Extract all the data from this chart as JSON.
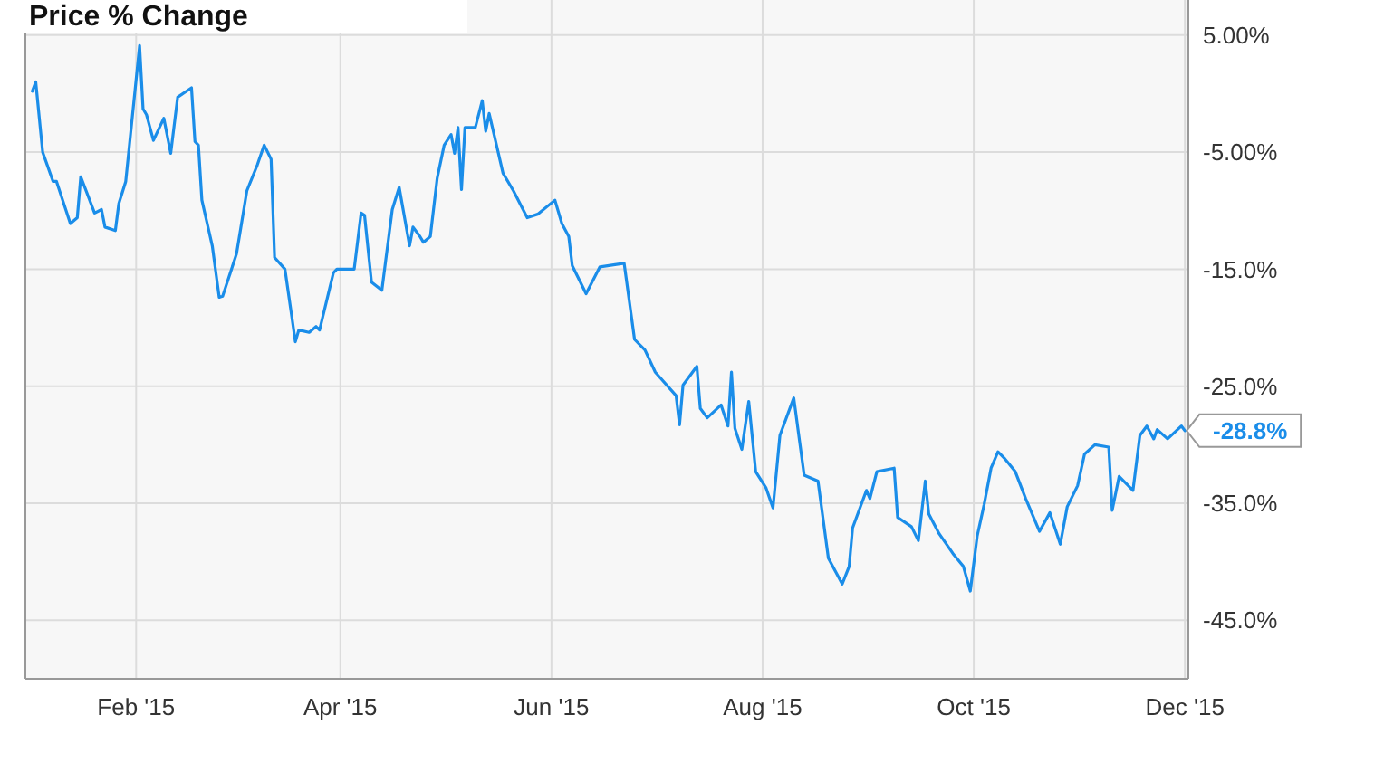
{
  "chart_data": {
    "type": "line",
    "title": "Price % Change",
    "x": [
      "2015-01-02",
      "2015-01-03",
      "2015-01-05",
      "2015-01-08",
      "2015-01-09",
      "2015-01-13",
      "2015-01-15",
      "2015-01-16",
      "2015-01-20",
      "2015-01-22",
      "2015-01-23",
      "2015-01-26",
      "2015-01-27",
      "2015-01-29",
      "2015-02-02",
      "2015-02-03",
      "2015-02-04",
      "2015-02-06",
      "2015-02-09",
      "2015-02-11",
      "2015-02-13",
      "2015-02-17",
      "2015-02-18",
      "2015-02-19",
      "2015-02-20",
      "2015-02-23",
      "2015-02-25",
      "2015-02-26",
      "2015-03-02",
      "2015-03-05",
      "2015-03-08",
      "2015-03-10",
      "2015-03-12",
      "2015-03-13",
      "2015-03-16",
      "2015-03-18",
      "2015-03-19",
      "2015-03-20",
      "2015-03-23",
      "2015-03-25",
      "2015-03-26",
      "2015-03-30",
      "2015-03-31",
      "2015-04-05",
      "2015-04-07",
      "2015-04-08",
      "2015-04-10",
      "2015-04-13",
      "2015-04-16",
      "2015-04-18",
      "2015-04-21",
      "2015-04-22",
      "2015-04-24",
      "2015-04-25",
      "2015-04-27",
      "2015-04-29",
      "2015-05-01",
      "2015-05-03",
      "2015-05-04",
      "2015-05-05",
      "2015-05-06",
      "2015-05-07",
      "2015-05-10",
      "2015-05-12",
      "2015-05-13",
      "2015-05-14",
      "2015-05-18",
      "2015-05-21",
      "2015-05-25",
      "2015-05-28",
      "2015-06-02",
      "2015-06-04",
      "2015-06-06",
      "2015-06-07",
      "2015-06-11",
      "2015-06-15",
      "2015-06-22",
      "2015-06-25",
      "2015-06-28",
      "2015-07-01",
      "2015-07-07",
      "2015-07-08",
      "2015-07-09",
      "2015-07-13",
      "2015-07-14",
      "2015-07-16",
      "2015-07-20",
      "2015-07-22",
      "2015-07-23",
      "2015-07-24",
      "2015-07-26",
      "2015-07-28",
      "2015-07-30",
      "2015-08-02",
      "2015-08-04",
      "2015-08-06",
      "2015-08-10",
      "2015-08-13",
      "2015-08-17",
      "2015-08-20",
      "2015-08-24",
      "2015-08-26",
      "2015-08-27",
      "2015-08-31",
      "2015-09-01",
      "2015-09-03",
      "2015-09-08",
      "2015-09-09",
      "2015-09-13",
      "2015-09-15",
      "2015-09-17",
      "2015-09-18",
      "2015-09-21",
      "2015-09-25",
      "2015-09-28",
      "2015-09-30",
      "2015-10-02",
      "2015-10-04",
      "2015-10-06",
      "2015-10-08",
      "2015-10-10",
      "2015-10-13",
      "2015-10-16",
      "2015-10-20",
      "2015-10-23",
      "2015-10-26",
      "2015-10-28",
      "2015-10-31",
      "2015-11-02",
      "2015-11-05",
      "2015-11-09",
      "2015-11-10",
      "2015-11-12",
      "2015-11-16",
      "2015-11-18",
      "2015-11-20",
      "2015-11-22",
      "2015-11-23",
      "2015-11-26",
      "2015-11-30",
      "2015-12-01"
    ],
    "series": [
      {
        "color": "#1a8de9",
        "values": [
          0.2,
          1.0,
          -5.0,
          -7.5,
          -7.5,
          -11.1,
          -10.6,
          -7.1,
          -10.2,
          -9.9,
          -11.4,
          -11.7,
          -9.4,
          -7.5,
          4.1,
          -1.3,
          -1.8,
          -4.0,
          -2.1,
          -5.1,
          -0.3,
          0.5,
          -4.1,
          -4.4,
          -9.1,
          -13.0,
          -17.4,
          -17.3,
          -13.7,
          -8.3,
          -6.1,
          -4.4,
          -5.6,
          -14.0,
          -15.0,
          -19.1,
          -21.2,
          -20.2,
          -20.4,
          -19.9,
          -20.2,
          -15.3,
          -15.0,
          -15.0,
          -10.2,
          -10.4,
          -16.1,
          -16.8,
          -9.9,
          -8.0,
          -13.0,
          -11.4,
          -12.2,
          -12.7,
          -12.2,
          -7.2,
          -4.4,
          -3.5,
          -5.1,
          -2.9,
          -8.2,
          -2.9,
          -2.9,
          -0.6,
          -3.2,
          -1.7,
          -6.8,
          -8.3,
          -10.6,
          -10.3,
          -9.1,
          -11.1,
          -12.2,
          -14.7,
          -17.1,
          -14.8,
          -14.5,
          -21.0,
          -21.9,
          -23.8,
          -25.8,
          -28.3,
          -24.9,
          -23.3,
          -26.9,
          -27.7,
          -26.6,
          -28.4,
          -23.8,
          -28.6,
          -30.4,
          -26.3,
          -32.3,
          -33.7,
          -35.4,
          -29.2,
          -26.0,
          -32.6,
          -33.1,
          -39.7,
          -41.9,
          -40.4,
          -37.1,
          -33.9,
          -34.6,
          -32.3,
          -32.0,
          -36.2,
          -37.0,
          -38.2,
          -33.1,
          -35.9,
          -37.6,
          -39.3,
          -40.4,
          -42.5,
          -37.8,
          -35.1,
          -32.0,
          -30.6,
          -31.2,
          -32.3,
          -34.6,
          -37.4,
          -35.8,
          -38.5,
          -35.3,
          -33.5,
          -30.8,
          -30.0,
          -30.2,
          -35.6,
          -32.7,
          -33.9,
          -29.2,
          -28.4,
          -29.5,
          -28.7,
          -29.5,
          -28.4,
          -28.8
        ]
      }
    ],
    "xlim": [
      "2014-12-31",
      "2015-12-02"
    ],
    "xticks": [
      {
        "value": "2015-02-01",
        "label": "Feb '15"
      },
      {
        "value": "2015-04-01",
        "label": "Apr '15"
      },
      {
        "value": "2015-06-01",
        "label": "Jun '15"
      },
      {
        "value": "2015-08-01",
        "label": "Aug '15"
      },
      {
        "value": "2015-10-01",
        "label": "Oct '15"
      },
      {
        "value": "2015-12-01",
        "label": "Dec '15"
      }
    ],
    "ylim": [
      -50,
      8
    ],
    "yticks": [
      {
        "value": 5,
        "label": "5.00%"
      },
      {
        "value": -5,
        "label": "-5.00%"
      },
      {
        "value": -15,
        "label": "-15.0%"
      },
      {
        "value": -25,
        "label": "-25.0%"
      },
      {
        "value": -35,
        "label": "-35.0%"
      },
      {
        "value": -45,
        "label": "-45.0%"
      }
    ],
    "grid": true,
    "annotations": [
      {
        "text": "-28.8%",
        "x": "2015-12-01",
        "y": -28.8
      }
    ]
  }
}
